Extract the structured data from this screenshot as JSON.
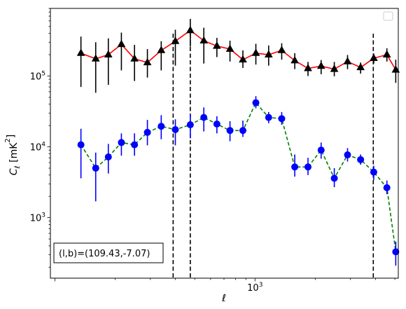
{
  "chart_data": {
    "type": "line",
    "title": "",
    "xlabel": "ℓ",
    "ylabel": "C_ℓ [mK²]",
    "xscale": "log",
    "yscale": "log",
    "xlim": [
      95,
      5200
    ],
    "ylim": [
      140,
      900000
    ],
    "grid": false,
    "legend": "top-right, empty box",
    "annotation": "(l,b)=(109.43,-7.07)",
    "vlines": [
      390,
      475,
      3900
    ],
    "x_ticks": [
      {
        "value": 1000,
        "label": "10^3"
      }
    ],
    "y_ticks": [
      {
        "value": 1000,
        "label": "10^3"
      },
      {
        "value": 10000,
        "label": "10^4"
      },
      {
        "value": 100000,
        "label": "10^5"
      }
    ],
    "series": [
      {
        "color": "#ff0000",
        "marker_color": "#000000",
        "marker": "triangle",
        "linestyle": "solid",
        "x": [
          135,
          160,
          185,
          215,
          250,
          290,
          340,
          400,
          475,
          555,
          645,
          750,
          870,
          1010,
          1170,
          1360,
          1580,
          1840,
          2140,
          2490,
          2900,
          3370,
          3920,
          4560,
          5050
        ],
        "y": [
          210000,
          175000,
          200000,
          280000,
          175000,
          155000,
          230000,
          310000,
          440000,
          315000,
          265000,
          240000,
          170000,
          210000,
          200000,
          230000,
          165000,
          128000,
          138000,
          125000,
          160000,
          132000,
          178000,
          200000,
          122000
        ],
        "yerr_low": [
          70000,
          58000,
          75000,
          120000,
          85000,
          95000,
          120000,
          140000,
          260000,
          150000,
          185000,
          160000,
          130000,
          145000,
          140000,
          170000,
          125000,
          100000,
          106000,
          99000,
          125000,
          108000,
          150000,
          160000,
          80000
        ],
        "yerr_high": [
          360000,
          300000,
          340000,
          410000,
          275000,
          240000,
          310000,
          450000,
          640000,
          480000,
          345000,
          315000,
          230000,
          285000,
          270000,
          290000,
          210000,
          158000,
          168000,
          158000,
          198000,
          155000,
          208000,
          246000,
          170000
        ]
      },
      {
        "color": "#008000",
        "marker_color": "#0000ff",
        "marker": "circle",
        "linestyle": "dashed",
        "x": [
          135,
          160,
          185,
          215,
          250,
          290,
          340,
          400,
          475,
          555,
          645,
          750,
          870,
          1010,
          1170,
          1360,
          1580,
          1840,
          2140,
          2490,
          2900,
          3370,
          3920,
          4560,
          5050
        ],
        "y": [
          10700,
          5000,
          7200,
          11500,
          10700,
          16000,
          19500,
          17500,
          20500,
          26000,
          21000,
          17000,
          17000,
          42000,
          26000,
          25000,
          5200,
          5200,
          9000,
          3600,
          7700,
          6600,
          4400,
          2650,
          330
        ],
        "yerr_low": [
          3600,
          1700,
          4200,
          7500,
          7500,
          10500,
          12800,
          10500,
          13200,
          16500,
          15500,
          12000,
          13800,
          35000,
          21500,
          20500,
          3800,
          4000,
          6800,
          2700,
          6200,
          5600,
          3400,
          2150,
          210
        ],
        "yerr_high": [
          18000,
          8300,
          11000,
          15500,
          15500,
          24000,
          28000,
          24500,
          29000,
          36000,
          27000,
          23000,
          23500,
          52000,
          31000,
          31000,
          7800,
          7000,
          11500,
          5000,
          9600,
          7800,
          5400,
          3350,
          460
        ]
      }
    ]
  }
}
